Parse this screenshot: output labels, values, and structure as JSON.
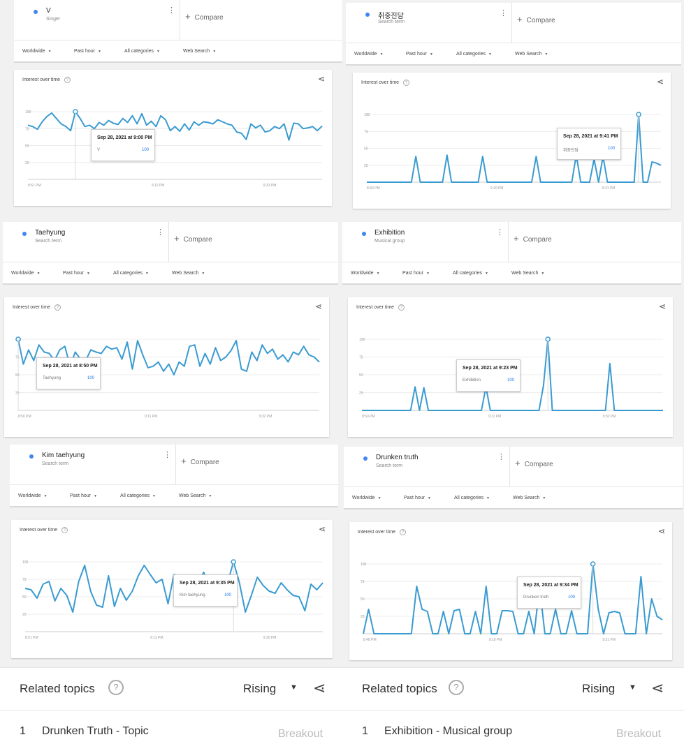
{
  "colors": {
    "accent": "#4285f4",
    "line": "#3a9bd1"
  },
  "filters": {
    "region": "Worldwide",
    "time": "Past hour",
    "category": "All categories",
    "search_type": "Web Search"
  },
  "compare_label": "Compare",
  "card_title": "Interest over time",
  "y_ticks": [
    "100",
    "75",
    "50",
    "25"
  ],
  "panels": [
    {
      "term": "V",
      "subtitle": "Singer",
      "tooltip": {
        "date": "Sep 28, 2021 at 9:00 PM",
        "name": "V",
        "value": "100"
      },
      "x_ticks": [
        "8:51 PM",
        "9:12 PM",
        "9:33 PM"
      ],
      "chart_data": {
        "type": "line",
        "title": "Interest over time",
        "series": [
          {
            "name": "V",
            "values": [
              80,
              78,
              74,
              85,
              93,
              98,
              90,
              82,
              78,
              72,
              100,
              90,
              78,
              80,
              75,
              84,
              80,
              87,
              83,
              81,
              90,
              84,
              94,
              82,
              97,
              80,
              86,
              78,
              94,
              88,
              72,
              78,
              71,
              82,
              73,
              85,
              80,
              85,
              84,
              82,
              88,
              85,
              82,
              80,
              70,
              68,
              59,
              82,
              76,
              80,
              70,
              72,
              78,
              75,
              82,
              58,
              83,
              82,
              75,
              76,
              78,
              72,
              79
            ]
          }
        ],
        "ylim": [
          0,
          100
        ]
      }
    },
    {
      "term": "취중진담",
      "subtitle": "Search term",
      "tooltip": {
        "date": "Sep 28, 2021 at 9:41 PM",
        "name": "취중진담",
        "value": "100"
      },
      "x_ticks": [
        "8:49 PM",
        "9:10 PM",
        "9:31 PM"
      ],
      "chart_data": {
        "type": "line",
        "title": "Interest over time",
        "series": [
          {
            "name": "취중진담",
            "values": [
              0,
              0,
              0,
              0,
              0,
              0,
              0,
              0,
              0,
              0,
              0,
              38,
              0,
              0,
              0,
              0,
              0,
              0,
              40,
              0,
              0,
              0,
              0,
              0,
              0,
              0,
              38,
              0,
              0,
              0,
              0,
              0,
              0,
              0,
              0,
              0,
              0,
              0,
              38,
              0,
              0,
              0,
              0,
              0,
              0,
              0,
              0,
              40,
              0,
              0,
              0,
              34,
              0,
              38,
              0,
              0,
              0,
              0,
              0,
              0,
              0,
              100,
              0,
              0,
              30,
              28,
              25
            ]
          }
        ],
        "ylim": [
          0,
          100
        ]
      }
    },
    {
      "term": "Taehyung",
      "subtitle": "Search term",
      "tooltip": {
        "date": "Sep 28, 2021 at 8:50 PM",
        "name": "Taehyung",
        "value": "100"
      },
      "x_ticks": [
        "8:50 PM",
        "9:11 PM",
        "9:32 PM"
      ],
      "chart_data": {
        "type": "line",
        "title": "Interest over time",
        "series": [
          {
            "name": "Taehyung",
            "values": [
              100,
              65,
              85,
              70,
              92,
              82,
              80,
              70,
              85,
              90,
              62,
              82,
              72,
              70,
              85,
              82,
              80,
              90,
              86,
              88,
              72,
              96,
              58,
              98,
              78,
              60,
              62,
              68,
              55,
              65,
              50,
              68,
              62,
              90,
              92,
              62,
              80,
              65,
              88,
              70,
              75,
              84,
              98,
              58,
              55,
              82,
              70,
              92,
              80,
              86,
              72,
              78,
              68,
              82,
              78,
              90,
              78,
              75,
              68
            ]
          }
        ],
        "ylim": [
          0,
          100
        ]
      }
    },
    {
      "term": "Exhibition",
      "subtitle": "Musical group",
      "tooltip": {
        "date": "Sep 28, 2021 at 9:23 PM",
        "name": "Exhibition",
        "value": "100"
      },
      "x_ticks": [
        "8:50 PM",
        "9:11 PM",
        "9:32 PM"
      ],
      "chart_data": {
        "type": "line",
        "title": "Interest over time",
        "series": [
          {
            "name": "Exhibition",
            "values": [
              0,
              0,
              0,
              0,
              0,
              0,
              0,
              0,
              0,
              0,
              0,
              0,
              33,
              0,
              32,
              0,
              0,
              0,
              0,
              0,
              0,
              0,
              0,
              0,
              0,
              0,
              0,
              0,
              33,
              0,
              0,
              0,
              0,
              0,
              0,
              0,
              0,
              0,
              0,
              0,
              0,
              35,
              100,
              0,
              0,
              0,
              0,
              0,
              0,
              0,
              0,
              0,
              0,
              0,
              0,
              0,
              66,
              0,
              0,
              0,
              0,
              0,
              0,
              0,
              0,
              0,
              0,
              0,
              0
            ]
          }
        ],
        "ylim": [
          0,
          100
        ]
      }
    },
    {
      "term": "Kim taehyung",
      "subtitle": "Search term",
      "tooltip": {
        "date": "Sep 28, 2021 at 9:35 PM",
        "name": "Kim taehyung",
        "value": "100"
      },
      "x_ticks": [
        "8:51 PM",
        "9:13 PM",
        "9:30 PM"
      ],
      "chart_data": {
        "type": "line",
        "title": "Interest over time",
        "series": [
          {
            "name": "Kim taehyung",
            "values": [
              62,
              60,
              48,
              68,
              72,
              44,
              62,
              52,
              28,
              72,
              95,
              58,
              38,
              35,
              80,
              36,
              62,
              45,
              58,
              80,
              95,
              82,
              70,
              75,
              40,
              82,
              78,
              45,
              72,
              70,
              85,
              65,
              60,
              42,
              70,
              100,
              70,
              28,
              52,
              78,
              66,
              58,
              55,
              70,
              60,
              52,
              50,
              30,
              68,
              60,
              70
            ]
          }
        ],
        "ylim": [
          0,
          100
        ]
      }
    },
    {
      "term": "Drunken truth",
      "subtitle": "Search term",
      "tooltip": {
        "date": "Sep 28, 2021 at 9:34 PM",
        "name": "Drunken truth",
        "value": "100"
      },
      "x_ticks": [
        "8:48 PM",
        "9:10 PM",
        "9:31 PM"
      ],
      "chart_data": {
        "type": "line",
        "title": "Interest over time",
        "series": [
          {
            "name": "Drunken truth",
            "values": [
              0,
              35,
              0,
              0,
              0,
              0,
              0,
              0,
              0,
              0,
              68,
              35,
              32,
              0,
              0,
              32,
              0,
              33,
              35,
              0,
              0,
              32,
              0,
              68,
              0,
              0,
              33,
              33,
              32,
              0,
              0,
              32,
              0,
              68,
              0,
              0,
              35,
              0,
              0,
              33,
              0,
              0,
              0,
              100,
              35,
              0,
              30,
              32,
              30,
              0,
              0,
              0,
              82,
              0,
              50,
              25,
              20
            ]
          }
        ],
        "ylim": [
          0,
          100
        ]
      }
    }
  ],
  "related": [
    {
      "title": "Related topics",
      "sort": "Rising",
      "rank": "1",
      "topic": "Drunken Truth - Topic",
      "value": "Breakout"
    },
    {
      "title": "Related topics",
      "sort": "Rising",
      "rank": "1",
      "topic": "Exhibition - Musical group",
      "value": "Breakout"
    }
  ]
}
